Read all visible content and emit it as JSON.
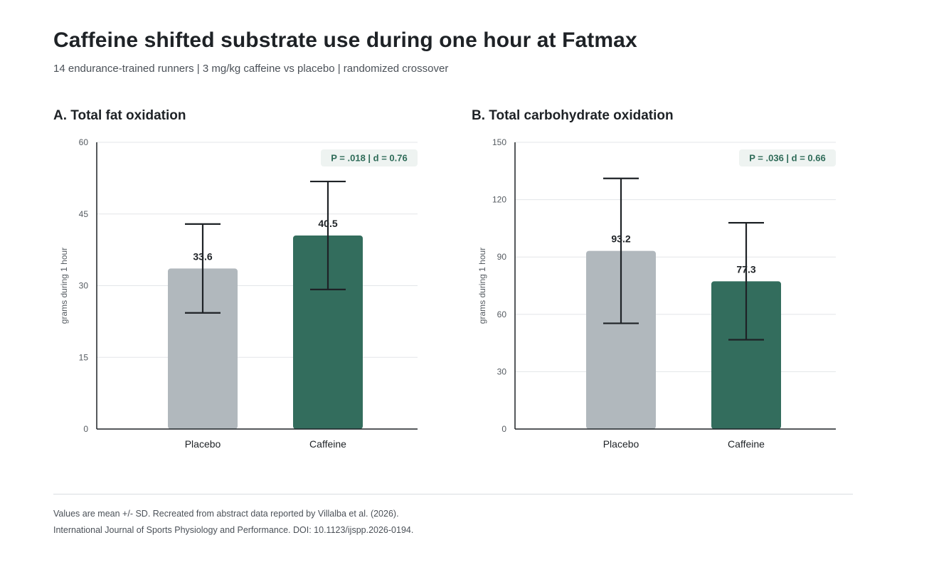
{
  "title": "Caffeine shifted substrate use during one hour at Fatmax",
  "subtitle": "14 endurance-trained runners | 3 mg/kg caffeine vs placebo | randomized crossover",
  "footnotes": [
    "Values are mean +/- SD. Recreated from abstract data reported by Villalba et al. (2026).",
    "International Journal of Sports Physiology and Performance. DOI: 10.1123/ijspp.2026-0194."
  ],
  "colors": {
    "placebo": "#b1b8bd",
    "caffeine": "#336d5d",
    "annotation_bg": "#eef3f1",
    "annotation_text": "#2e6b58"
  },
  "chart_data": [
    {
      "type": "bar",
      "title": "A. Total fat oxidation",
      "ylabel": "grams during 1 hour",
      "categories": [
        "Placebo",
        "Caffeine"
      ],
      "values": [
        33.6,
        40.5
      ],
      "value_labels": [
        "33.6",
        "40.5"
      ],
      "error_sd": [
        9.3,
        11.3
      ],
      "ylim": [
        0,
        60
      ],
      "yticks": [
        0,
        15,
        30,
        45,
        60
      ],
      "grid": true,
      "annotation": "P = .018 | d = 0.76"
    },
    {
      "type": "bar",
      "title": "B. Total carbohydrate oxidation",
      "ylabel": "grams during 1 hour",
      "categories": [
        "Placebo",
        "Caffeine"
      ],
      "values": [
        93.2,
        77.3
      ],
      "value_labels": [
        "93.2",
        "77.3"
      ],
      "error_sd": [
        37.9,
        30.6
      ],
      "ylim": [
        0,
        150
      ],
      "yticks": [
        0,
        30,
        60,
        90,
        120,
        150
      ],
      "grid": true,
      "annotation": "P = .036 | d = 0.66"
    }
  ]
}
